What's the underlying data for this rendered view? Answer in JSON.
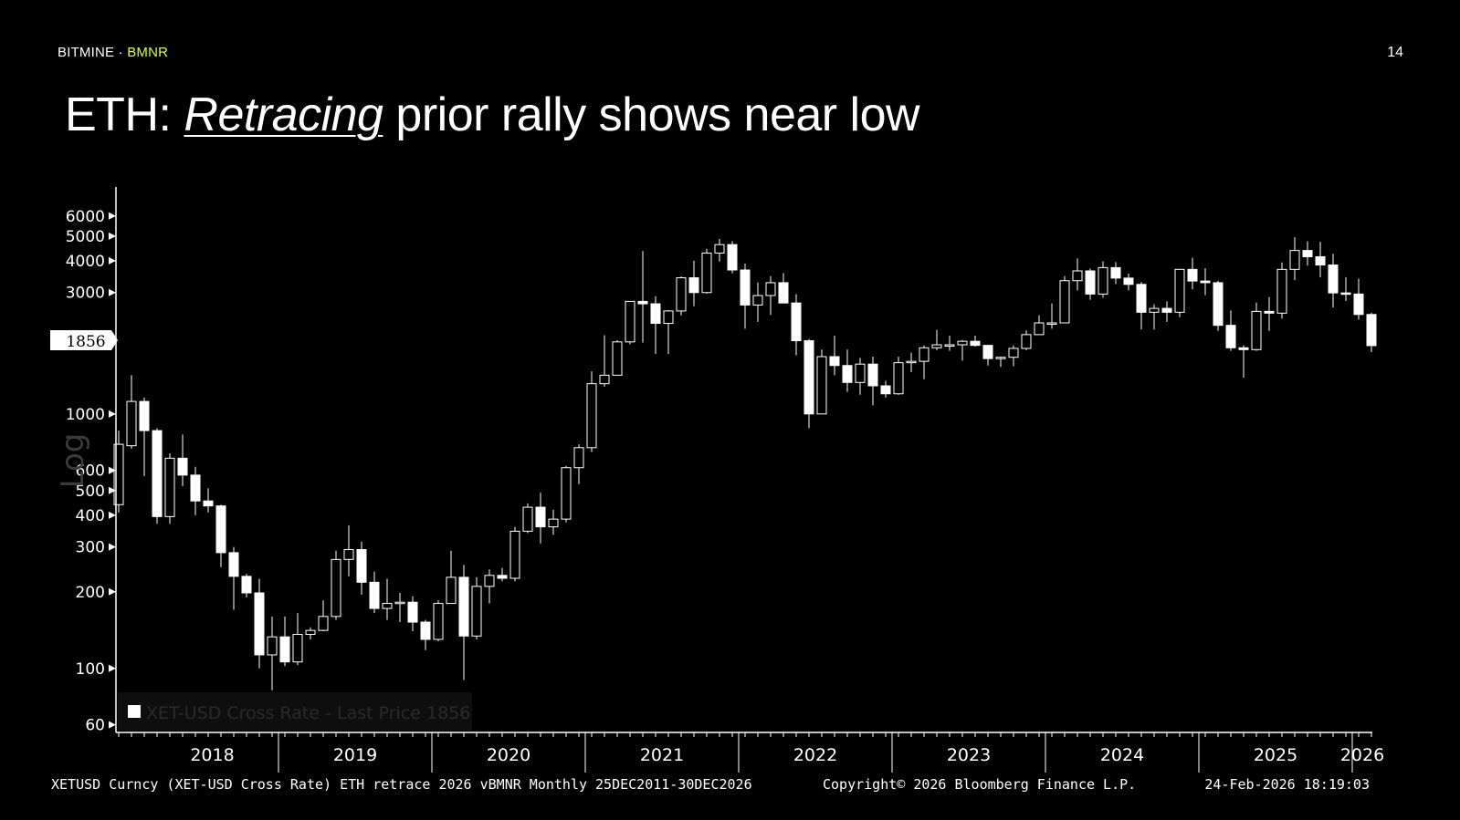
{
  "brand": {
    "company": "BITMINE",
    "separator": " · ",
    "ticker": "BMNR"
  },
  "page_number": "14",
  "title": {
    "prefix": "ETH: ",
    "emphasis": "Retracing",
    "rest": " prior rally shows near low"
  },
  "footer": {
    "left": "XETUSD Curncy (XET-USD Cross Rate) ETH retrace 2026 vBMNR Monthly 25DEC2011-30DEC2026",
    "center": "Copyright© 2026 Bloomberg Finance L.P.",
    "right": "24-Feb-2026 18:19:03"
  },
  "colors": {
    "background": "#000000",
    "candle": "#ffffff",
    "accent": "#d6ff3a",
    "legend_text": "#2a2a2a"
  },
  "chart_data": {
    "type": "candlestick",
    "scale": "log",
    "scale_label": "Log",
    "ylim": [
      56,
      7800
    ],
    "y_ticks": [
      60,
      100,
      200,
      300,
      400,
      500,
      600,
      1000,
      3000,
      4000,
      5000,
      6000
    ],
    "last_price_label": "1856",
    "x_ticks": [
      "2018",
      "2019",
      "2020",
      "2021",
      "2022",
      "2023",
      "2024",
      "2025",
      "2026"
    ],
    "legend": "XET-USD Cross Rate - Last Price 1856",
    "interval": "Monthly",
    "series": [
      {
        "d": "2017-12",
        "o": 440,
        "h": 860,
        "l": 410,
        "c": 760
      },
      {
        "d": "2018-01",
        "o": 750,
        "h": 1420,
        "l": 730,
        "c": 1120
      },
      {
        "d": "2018-02",
        "o": 1120,
        "h": 1160,
        "l": 570,
        "c": 860
      },
      {
        "d": "2018-03",
        "o": 860,
        "h": 880,
        "l": 370,
        "c": 395
      },
      {
        "d": "2018-04",
        "o": 395,
        "h": 700,
        "l": 370,
        "c": 670
      },
      {
        "d": "2018-05",
        "o": 670,
        "h": 830,
        "l": 520,
        "c": 575
      },
      {
        "d": "2018-06",
        "o": 575,
        "h": 620,
        "l": 400,
        "c": 455
      },
      {
        "d": "2018-07",
        "o": 455,
        "h": 510,
        "l": 410,
        "c": 435
      },
      {
        "d": "2018-08",
        "o": 435,
        "h": 440,
        "l": 250,
        "c": 285
      },
      {
        "d": "2018-09",
        "o": 285,
        "h": 300,
        "l": 170,
        "c": 230
      },
      {
        "d": "2018-10",
        "o": 230,
        "h": 235,
        "l": 190,
        "c": 198
      },
      {
        "d": "2018-11",
        "o": 198,
        "h": 225,
        "l": 100,
        "c": 113
      },
      {
        "d": "2018-12",
        "o": 113,
        "h": 160,
        "l": 82,
        "c": 133
      },
      {
        "d": "2019-01",
        "o": 133,
        "h": 160,
        "l": 102,
        "c": 106
      },
      {
        "d": "2019-02",
        "o": 106,
        "h": 165,
        "l": 103,
        "c": 136
      },
      {
        "d": "2019-03",
        "o": 136,
        "h": 145,
        "l": 130,
        "c": 141
      },
      {
        "d": "2019-04",
        "o": 141,
        "h": 185,
        "l": 140,
        "c": 160
      },
      {
        "d": "2019-05",
        "o": 160,
        "h": 290,
        "l": 155,
        "c": 268
      },
      {
        "d": "2019-06",
        "o": 268,
        "h": 365,
        "l": 230,
        "c": 293
      },
      {
        "d": "2019-07",
        "o": 293,
        "h": 315,
        "l": 195,
        "c": 218
      },
      {
        "d": "2019-08",
        "o": 218,
        "h": 240,
        "l": 165,
        "c": 172
      },
      {
        "d": "2019-09",
        "o": 172,
        "h": 225,
        "l": 155,
        "c": 180
      },
      {
        "d": "2019-10",
        "o": 180,
        "h": 198,
        "l": 152,
        "c": 182
      },
      {
        "d": "2019-11",
        "o": 182,
        "h": 192,
        "l": 140,
        "c": 152
      },
      {
        "d": "2019-12",
        "o": 152,
        "h": 155,
        "l": 118,
        "c": 130
      },
      {
        "d": "2020-01",
        "o": 130,
        "h": 185,
        "l": 128,
        "c": 180
      },
      {
        "d": "2020-02",
        "o": 180,
        "h": 290,
        "l": 180,
        "c": 228
      },
      {
        "d": "2020-03",
        "o": 228,
        "h": 255,
        "l": 90,
        "c": 134
      },
      {
        "d": "2020-04",
        "o": 134,
        "h": 228,
        "l": 130,
        "c": 210
      },
      {
        "d": "2020-05",
        "o": 210,
        "h": 245,
        "l": 180,
        "c": 232
      },
      {
        "d": "2020-06",
        "o": 232,
        "h": 248,
        "l": 220,
        "c": 226
      },
      {
        "d": "2020-07",
        "o": 226,
        "h": 360,
        "l": 220,
        "c": 346
      },
      {
        "d": "2020-08",
        "o": 346,
        "h": 445,
        "l": 340,
        "c": 430
      },
      {
        "d": "2020-09",
        "o": 430,
        "h": 490,
        "l": 310,
        "c": 360
      },
      {
        "d": "2020-10",
        "o": 360,
        "h": 420,
        "l": 335,
        "c": 386
      },
      {
        "d": "2020-11",
        "o": 386,
        "h": 625,
        "l": 375,
        "c": 615
      },
      {
        "d": "2020-12",
        "o": 615,
        "h": 760,
        "l": 530,
        "c": 737
      },
      {
        "d": "2021-01",
        "o": 737,
        "h": 1470,
        "l": 710,
        "c": 1315
      },
      {
        "d": "2021-02",
        "o": 1315,
        "h": 2040,
        "l": 1280,
        "c": 1420
      },
      {
        "d": "2021-03",
        "o": 1420,
        "h": 1950,
        "l": 1420,
        "c": 1920
      },
      {
        "d": "2021-04",
        "o": 1920,
        "h": 2750,
        "l": 1880,
        "c": 2770
      },
      {
        "d": "2021-05",
        "o": 2770,
        "h": 4370,
        "l": 1910,
        "c": 2710
      },
      {
        "d": "2021-06",
        "o": 2710,
        "h": 2900,
        "l": 1720,
        "c": 2270
      },
      {
        "d": "2021-07",
        "o": 2270,
        "h": 2560,
        "l": 1720,
        "c": 2540
      },
      {
        "d": "2021-08",
        "o": 2540,
        "h": 3470,
        "l": 2440,
        "c": 3430
      },
      {
        "d": "2021-09",
        "o": 3430,
        "h": 4000,
        "l": 2650,
        "c": 3000
      },
      {
        "d": "2021-10",
        "o": 3000,
        "h": 4460,
        "l": 2970,
        "c": 4290
      },
      {
        "d": "2021-11",
        "o": 4290,
        "h": 4870,
        "l": 3970,
        "c": 4630
      },
      {
        "d": "2021-12",
        "o": 4630,
        "h": 4780,
        "l": 3570,
        "c": 3680
      },
      {
        "d": "2022-01",
        "o": 3680,
        "h": 3900,
        "l": 2160,
        "c": 2680
      },
      {
        "d": "2022-02",
        "o": 2680,
        "h": 3290,
        "l": 2300,
        "c": 2920
      },
      {
        "d": "2022-03",
        "o": 2920,
        "h": 3480,
        "l": 2450,
        "c": 3280
      },
      {
        "d": "2022-04",
        "o": 3280,
        "h": 3580,
        "l": 2780,
        "c": 2730
      },
      {
        "d": "2022-05",
        "o": 2730,
        "h": 2960,
        "l": 1700,
        "c": 1940
      },
      {
        "d": "2022-06",
        "o": 1940,
        "h": 1970,
        "l": 880,
        "c": 1000
      },
      {
        "d": "2022-07",
        "o": 1000,
        "h": 1790,
        "l": 1000,
        "c": 1680
      },
      {
        "d": "2022-08",
        "o": 1680,
        "h": 2030,
        "l": 1420,
        "c": 1550
      },
      {
        "d": "2022-09",
        "o": 1550,
        "h": 1790,
        "l": 1220,
        "c": 1330
      },
      {
        "d": "2022-10",
        "o": 1330,
        "h": 1660,
        "l": 1190,
        "c": 1570
      },
      {
        "d": "2022-11",
        "o": 1570,
        "h": 1680,
        "l": 1080,
        "c": 1290
      },
      {
        "d": "2022-12",
        "o": 1290,
        "h": 1350,
        "l": 1160,
        "c": 1200
      },
      {
        "d": "2023-01",
        "o": 1200,
        "h": 1680,
        "l": 1190,
        "c": 1590
      },
      {
        "d": "2023-02",
        "o": 1590,
        "h": 1740,
        "l": 1460,
        "c": 1610
      },
      {
        "d": "2023-03",
        "o": 1610,
        "h": 1860,
        "l": 1370,
        "c": 1820
      },
      {
        "d": "2023-04",
        "o": 1820,
        "h": 2140,
        "l": 1780,
        "c": 1870
      },
      {
        "d": "2023-05",
        "o": 1870,
        "h": 2030,
        "l": 1770,
        "c": 1870
      },
      {
        "d": "2023-06",
        "o": 1870,
        "h": 1950,
        "l": 1620,
        "c": 1930
      },
      {
        "d": "2023-07",
        "o": 1930,
        "h": 2030,
        "l": 1840,
        "c": 1860
      },
      {
        "d": "2023-08",
        "o": 1860,
        "h": 1870,
        "l": 1550,
        "c": 1650
      },
      {
        "d": "2023-09",
        "o": 1650,
        "h": 1680,
        "l": 1530,
        "c": 1670
      },
      {
        "d": "2023-10",
        "o": 1670,
        "h": 1860,
        "l": 1540,
        "c": 1810
      },
      {
        "d": "2023-11",
        "o": 1810,
        "h": 2130,
        "l": 1780,
        "c": 2050
      },
      {
        "d": "2023-12",
        "o": 2050,
        "h": 2440,
        "l": 2050,
        "c": 2280
      },
      {
        "d": "2024-01",
        "o": 2280,
        "h": 2720,
        "l": 2160,
        "c": 2280
      },
      {
        "d": "2024-02",
        "o": 2280,
        "h": 3480,
        "l": 2270,
        "c": 3340
      },
      {
        "d": "2024-03",
        "o": 3340,
        "h": 4090,
        "l": 3060,
        "c": 3650
      },
      {
        "d": "2024-04",
        "o": 3650,
        "h": 3730,
        "l": 2810,
        "c": 2960
      },
      {
        "d": "2024-05",
        "o": 2960,
        "h": 3980,
        "l": 2860,
        "c": 3760
      },
      {
        "d": "2024-06",
        "o": 3760,
        "h": 3950,
        "l": 3240,
        "c": 3420
      },
      {
        "d": "2024-07",
        "o": 3420,
        "h": 3560,
        "l": 3060,
        "c": 3230
      },
      {
        "d": "2024-08",
        "o": 3230,
        "h": 3300,
        "l": 2150,
        "c": 2510
      },
      {
        "d": "2024-09",
        "o": 2510,
        "h": 2700,
        "l": 2150,
        "c": 2600
      },
      {
        "d": "2024-10",
        "o": 2600,
        "h": 2770,
        "l": 2300,
        "c": 2510
      },
      {
        "d": "2024-11",
        "o": 2510,
        "h": 3720,
        "l": 2400,
        "c": 3700
      },
      {
        "d": "2024-12",
        "o": 3700,
        "h": 4110,
        "l": 3090,
        "c": 3330
      },
      {
        "d": "2025-01",
        "o": 3330,
        "h": 3740,
        "l": 2930,
        "c": 3280
      },
      {
        "d": "2025-02",
        "o": 3280,
        "h": 3340,
        "l": 2120,
        "c": 2230
      },
      {
        "d": "2025-03",
        "o": 2230,
        "h": 2550,
        "l": 1770,
        "c": 1820
      },
      {
        "d": "2025-04",
        "o": 1820,
        "h": 1860,
        "l": 1390,
        "c": 1790
      },
      {
        "d": "2025-05",
        "o": 1790,
        "h": 2740,
        "l": 1770,
        "c": 2530
      },
      {
        "d": "2025-06",
        "o": 2530,
        "h": 2880,
        "l": 2120,
        "c": 2490
      },
      {
        "d": "2025-07",
        "o": 2490,
        "h": 3940,
        "l": 2370,
        "c": 3700
      },
      {
        "d": "2025-08",
        "o": 3700,
        "h": 4950,
        "l": 3360,
        "c": 4390
      },
      {
        "d": "2025-09",
        "o": 4390,
        "h": 4770,
        "l": 3830,
        "c": 4150
      },
      {
        "d": "2025-10",
        "o": 4150,
        "h": 4750,
        "l": 3440,
        "c": 3850
      },
      {
        "d": "2025-11",
        "o": 3850,
        "h": 4260,
        "l": 2620,
        "c": 2990
      },
      {
        "d": "2025-12",
        "o": 2990,
        "h": 3450,
        "l": 2780,
        "c": 2960
      },
      {
        "d": "2026-01",
        "o": 2960,
        "h": 3400,
        "l": 2350,
        "c": 2460
      },
      {
        "d": "2026-02",
        "o": 2460,
        "h": 2500,
        "l": 1750,
        "c": 1856
      }
    ]
  }
}
